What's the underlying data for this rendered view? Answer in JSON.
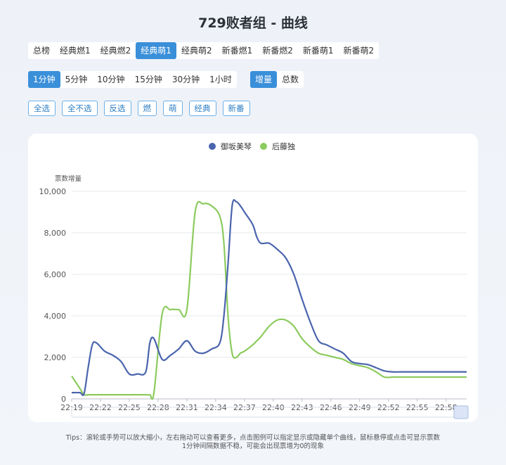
{
  "title": "729败者组 - 曲线",
  "group_tabs": [
    "总榜",
    "经典燃1",
    "经典燃2",
    "经典萌1",
    "经典萌2",
    "新番燃1",
    "新番燃2",
    "新番萌1",
    "新番萌2"
  ],
  "group_active": 3,
  "interval_tabs": [
    "1分钟",
    "5分钟",
    "10分钟",
    "15分钟",
    "30分钟",
    "1小时"
  ],
  "interval_active": 0,
  "mode_tabs": [
    "增量",
    "总数"
  ],
  "mode_active": 0,
  "filter_buttons": [
    "全选",
    "全不选",
    "反选",
    "燃",
    "萌",
    "经典",
    "新番"
  ],
  "tips_line1": "Tips：滚轮或手势可以放大缩小，左右拖动可以查看更多，点击图例可以指定显示或隐藏单个曲线，鼠标悬停或点击可显示票数",
  "tips_line2": "1分钟间隔数据不稳，可能会出现票增为0的现象",
  "colors": {
    "accent": "#3a8fd9",
    "series1": "#4a64ad",
    "series2": "#8ccb5e"
  },
  "chart_data": {
    "type": "line",
    "ylabel": "票数增量",
    "ylim": [
      0,
      10000
    ],
    "yticks": [
      "0",
      "2,000",
      "4,000",
      "6,000",
      "8,000",
      "10,000"
    ],
    "xticks": [
      "22:19",
      "22:22",
      "22:25",
      "22:28",
      "22:31",
      "22:34",
      "22:37",
      "22:40",
      "22:43",
      "22:46",
      "22:49",
      "22:52",
      "22:55",
      "22:58"
    ],
    "legend_position": "top-center",
    "x": [
      0,
      1,
      1.5,
      2,
      2.5,
      3,
      4,
      5,
      6,
      7,
      8,
      9,
      9.5,
      10,
      11,
      12,
      13,
      14,
      15,
      16,
      17,
      18,
      18.5,
      19,
      19.5,
      20,
      20.5,
      21,
      22,
      22.5,
      23,
      24,
      25,
      26,
      27,
      28,
      29,
      30,
      31,
      32,
      33,
      34,
      35,
      36,
      37,
      38,
      39,
      40,
      41,
      42,
      43,
      44,
      45,
      46,
      47,
      48
    ],
    "series": [
      {
        "name": "御坂美琴",
        "values": [
          300,
          300,
          250,
          1500,
          2600,
          2700,
          2300,
          2100,
          1800,
          1200,
          1200,
          1300,
          2700,
          2900,
          1900,
          2100,
          2400,
          2800,
          2300,
          2200,
          2400,
          2700,
          4000,
          6500,
          9300,
          9500,
          9300,
          9000,
          8400,
          7800,
          7500,
          7500,
          7200,
          6800,
          6000,
          4800,
          3700,
          2800,
          2600,
          2400,
          2200,
          1800,
          1700,
          1650,
          1500,
          1350,
          1300,
          1300,
          1300,
          1300,
          1300,
          1300,
          1300,
          1300,
          1300,
          1300
        ]
      },
      {
        "name": "后藤独",
        "values": [
          1100,
          500,
          200,
          200,
          200,
          200,
          200,
          200,
          200,
          200,
          200,
          200,
          200,
          300,
          4100,
          4300,
          4300,
          4300,
          9000,
          9400,
          9300,
          8800,
          7500,
          4000,
          2200,
          2000,
          2200,
          2300,
          2600,
          2800,
          3000,
          3500,
          3800,
          3800,
          3500,
          2900,
          2500,
          2200,
          2100,
          2000,
          1900,
          1700,
          1600,
          1500,
          1300,
          1050,
          1050,
          1050,
          1050,
          1050,
          1050,
          1050,
          1050,
          1050,
          1050,
          1050
        ]
      }
    ]
  }
}
